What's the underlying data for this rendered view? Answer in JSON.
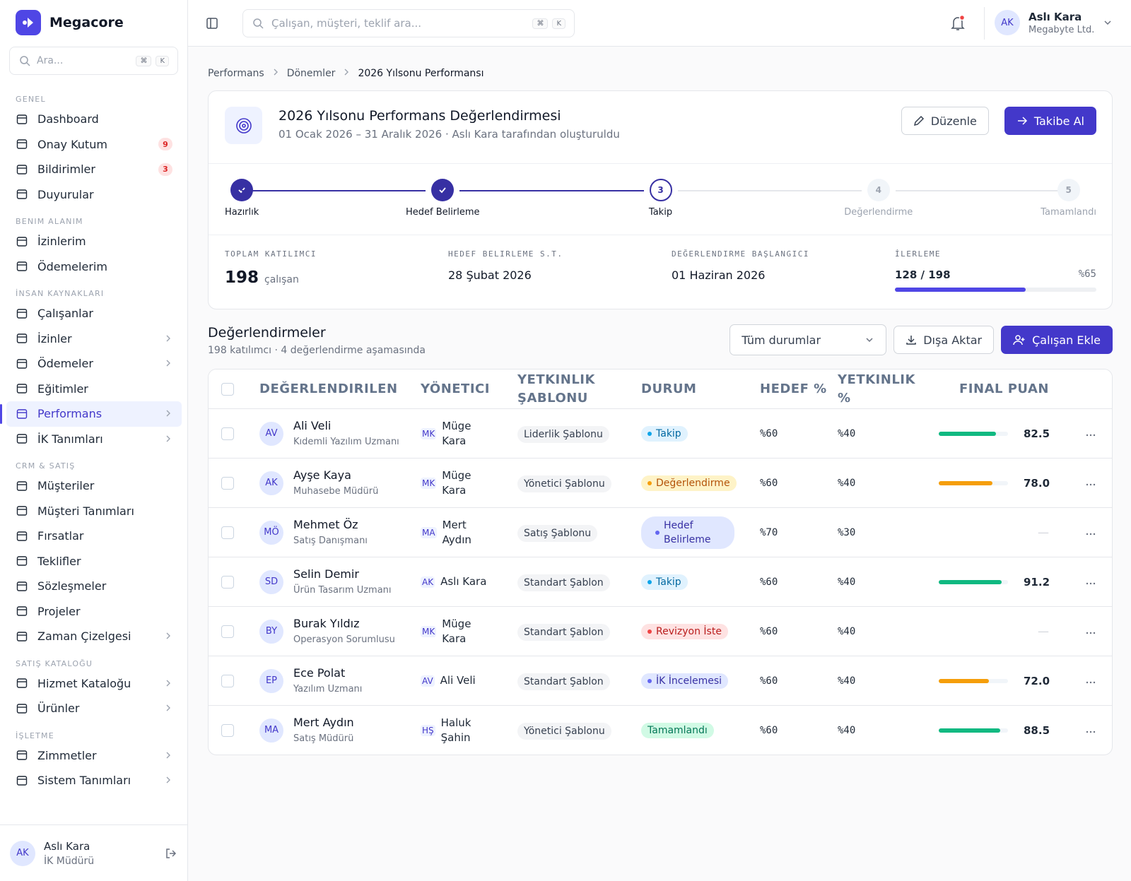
{
  "sidebar": {
    "brand": "Megacore",
    "search": {
      "placeholder": "Ara...",
      "keys": [
        "⌘",
        "K"
      ]
    },
    "sections": [
      {
        "title": "GENEL",
        "items": [
          {
            "label": "Dashboard"
          },
          {
            "label": "Onay Kutum",
            "badge": 9
          },
          {
            "label": "Bildirimler",
            "badge": 3
          },
          {
            "label": "Duyurular"
          }
        ]
      },
      {
        "title": "BENIM ALANIM",
        "items": [
          {
            "label": "İzinlerim"
          },
          {
            "label": "Ödemelerim"
          }
        ]
      },
      {
        "title": "İNSAN KAYNAKLARI",
        "items": [
          {
            "label": "Çalışanlar"
          },
          {
            "label": "İzinler",
            "submenu": true
          },
          {
            "label": "Ödemeler",
            "submenu": true
          },
          {
            "label": "Eğitimler"
          },
          {
            "label": "Performans",
            "submenu": true,
            "active": true
          },
          {
            "label": "İK Tanımları",
            "submenu": true
          }
        ]
      },
      {
        "title": "CRM & SATIŞ",
        "items": [
          {
            "label": "Müşteriler"
          },
          {
            "label": "Müşteri Tanımları"
          },
          {
            "label": "Fırsatlar"
          },
          {
            "label": "Teklifler"
          },
          {
            "label": "Sözleşmeler"
          },
          {
            "label": "Projeler"
          },
          {
            "label": "Zaman Çizelgesi",
            "submenu": true
          }
        ]
      },
      {
        "title": "SATIŞ KATALOĞU",
        "items": [
          {
            "label": "Hizmet Kataloğu",
            "submenu": true
          },
          {
            "label": "Ürünler",
            "submenu": true
          }
        ]
      },
      {
        "title": "İŞLETME",
        "items": [
          {
            "label": "Zimmetler",
            "submenu": true
          },
          {
            "label": "Sistem Tanımları",
            "submenu": true
          }
        ]
      }
    ],
    "user": {
      "initials": "AK",
      "name": "Aslı Kara",
      "role": "İK Müdürü"
    }
  },
  "topbar": {
    "search": {
      "placeholder": "Çalışan, müşteri, teklif ara...",
      "keys": [
        "⌘",
        "K"
      ]
    },
    "user": {
      "initials": "AK",
      "name": "Aslı Kara",
      "company": "Megabyte Ltd."
    }
  },
  "breadcrumb": [
    "Performans",
    "Dönemler",
    "2026 Yılsonu Performansı"
  ],
  "period": {
    "title": "2026 Yılsonu Performans Değerlendirmesi",
    "subtitle": "01 Ocak 2026 – 31 Aralık 2026 · Aslı Kara tarafından oluşturuldu",
    "actions": [
      "Düzenle",
      "Takibe Al"
    ],
    "steps": [
      {
        "label": "Hazırlık",
        "status": "done"
      },
      {
        "label": "Hedef Belirleme",
        "status": "done"
      },
      {
        "label": "Takip",
        "number": 3,
        "status": "current"
      },
      {
        "label": "Değerlendirme",
        "number": 4,
        "status": "pending"
      },
      {
        "label": "Tamamlandı",
        "number": 5,
        "status": "pending"
      }
    ],
    "stats": [
      {
        "label": "TOPLAM KATILIMCI",
        "value": 198,
        "unit": "çalışan"
      },
      {
        "label": "HEDEF BELIRLEME S.T.",
        "value": "28 Şubat 2026"
      },
      {
        "label": "DEĞERLENDIRME BAŞLANGICI",
        "value": "01 Haziran 2026"
      }
    ],
    "progress": {
      "label": "İLERLEME",
      "value": "128 / 198",
      "percent": {
        "value": 65,
        "label": "%65"
      }
    }
  },
  "evaluations": {
    "title": "Değerlendirmeler",
    "subtitle": "198 katılımcı · 4 değerlendirme aşamasında",
    "filter": "Tüm durumlar",
    "actions": [
      "Dışa Aktar",
      "Çalışan Ekle"
    ],
    "columns": [
      "DEĞERLENDIRILEN",
      "YÖNETICI",
      "YETKINLIK ŞABLONU",
      "DURUM",
      "HEDEF %",
      "YETKINLIK %",
      "FINAL PUAN"
    ],
    "rows": [
      {
        "initials": "AV",
        "name": "Ali Veli",
        "title": "Kıdemli Yazılım Uzmanı",
        "manager_initials": "MK",
        "manager": "Müge Kara",
        "template": "Liderlik Şablonu",
        "status": {
          "label": "Takip",
          "tone": "blue"
        },
        "goal": "%60",
        "competency": "%40",
        "score": {
          "value": 82.5,
          "label": "82.5"
        },
        "score_color": "#10b981"
      },
      {
        "initials": "AK",
        "name": "Ayşe Kaya",
        "title": "Muhasebe Müdürü",
        "manager_initials": "MK",
        "manager": "Müge Kara",
        "template": "Yönetici Şablonu",
        "status": {
          "label": "Değerlendirme",
          "tone": "amber"
        },
        "goal": "%60",
        "competency": "%40",
        "score": {
          "value": 78,
          "label": "78.0"
        },
        "score_color": "#f59e0b"
      },
      {
        "initials": "MÖ",
        "name": "Mehmet Öz",
        "title": "Satış Danışmanı",
        "manager_initials": "MA",
        "manager": "Mert Aydın",
        "template": "Satış Şablonu",
        "status": {
          "label": "Hedef Belirleme",
          "tone": "indigo"
        },
        "goal": "%70",
        "competency": "%30",
        "score": {
          "value": null,
          "label": "—"
        }
      },
      {
        "initials": "SD",
        "name": "Selin Demir",
        "title": "Ürün Tasarım Uzmanı",
        "manager_initials": "AK",
        "manager": "Aslı Kara",
        "template": "Standart Şablon",
        "status": {
          "label": "Takip",
          "tone": "blue"
        },
        "goal": "%60",
        "competency": "%40",
        "score": {
          "value": 91.2,
          "label": "91.2"
        },
        "score_color": "#10b981"
      },
      {
        "initials": "BY",
        "name": "Burak Yıldız",
        "title": "Operasyon Sorumlusu",
        "manager_initials": "MK",
        "manager": "Müge Kara",
        "template": "Standart Şablon",
        "status": {
          "label": "Revizyon İste",
          "tone": "red"
        },
        "goal": "%60",
        "competency": "%40",
        "score": {
          "value": null,
          "label": "—"
        }
      },
      {
        "initials": "EP",
        "name": "Ece Polat",
        "title": "Yazılım Uzmanı",
        "manager_initials": "AV",
        "manager": "Ali Veli",
        "template": "Standart Şablon",
        "status": {
          "label": "İK İncelemesi",
          "tone": "indigo"
        },
        "goal": "%60",
        "competency": "%40",
        "score": {
          "value": 72,
          "label": "72.0"
        },
        "score_color": "#f59e0b"
      },
      {
        "initials": "MA",
        "name": "Mert Aydın",
        "title": "Satış Müdürü",
        "manager_initials": "HŞ",
        "manager": "Haluk Şahin",
        "template": "Yönetici Şablonu",
        "status": {
          "label": "Tamamlandı",
          "tone": "green"
        },
        "goal": "%60",
        "competency": "%40",
        "score": {
          "value": 88.5,
          "label": "88.5"
        },
        "score_color": "#10b981"
      }
    ]
  }
}
